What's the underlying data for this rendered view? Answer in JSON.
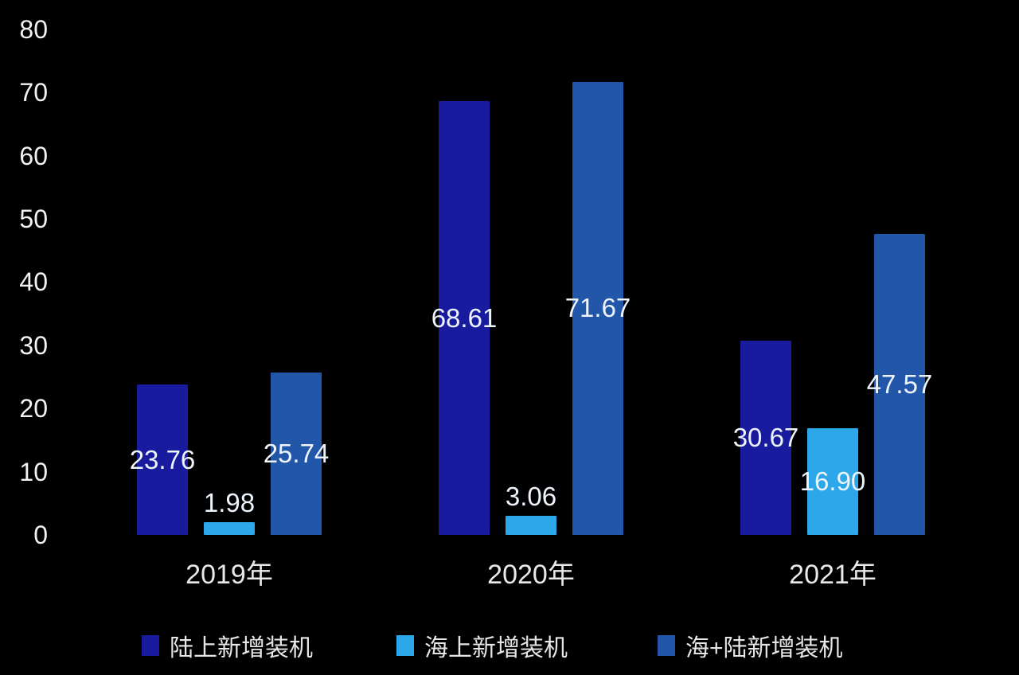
{
  "chart_data": {
    "type": "bar",
    "title": "",
    "categories": [
      "2019年",
      "2020年",
      "2021年"
    ],
    "series": [
      {
        "name": "陆上新增装机",
        "color": "#191b9e",
        "values": [
          23.76,
          68.61,
          30.67
        ],
        "labels": [
          "23.76",
          "68.61",
          "30.67"
        ]
      },
      {
        "name": "海上新增装机",
        "color": "#2ca7e9",
        "values": [
          1.98,
          3.06,
          16.9
        ],
        "labels": [
          "1.98",
          "3.06",
          "16.90"
        ]
      },
      {
        "name": "海+陆新增装机",
        "color": "#2156a8",
        "values": [
          25.74,
          71.67,
          47.57
        ],
        "labels": [
          "25.74",
          "71.67",
          "47.57"
        ]
      }
    ],
    "xlabel": "",
    "ylabel": "",
    "ylim": [
      0,
      80
    ],
    "yticks": [
      0,
      10,
      20,
      30,
      40,
      50,
      60,
      70,
      80
    ],
    "grid": false,
    "legend_position": "bottom",
    "background": "#000000",
    "label_color": "#ffffff"
  }
}
